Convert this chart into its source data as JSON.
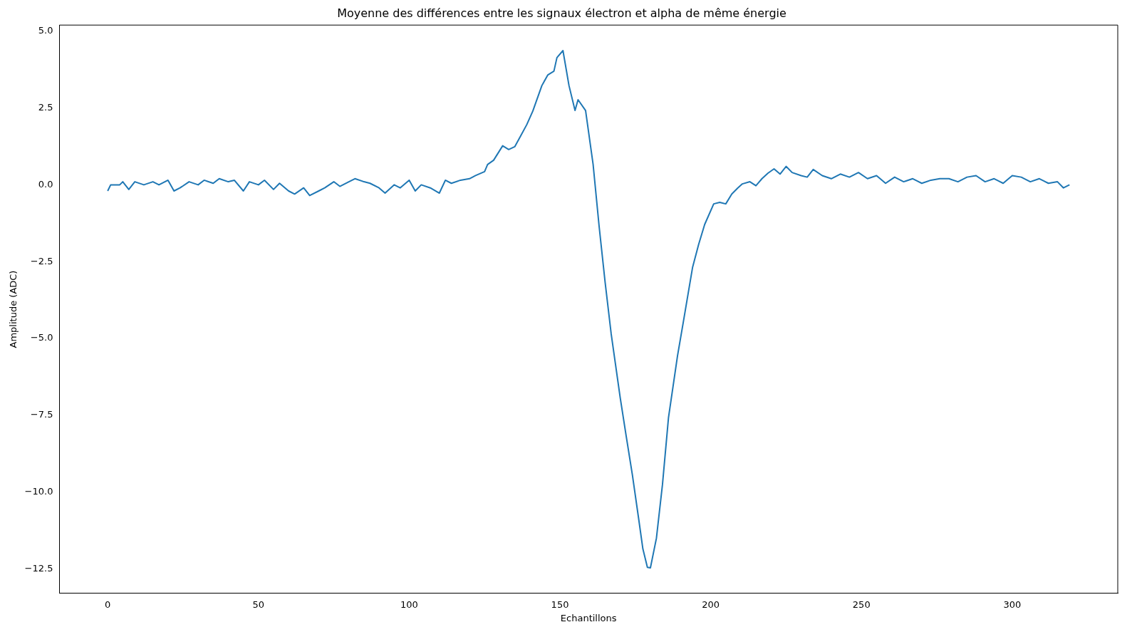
{
  "chart_data": {
    "type": "line",
    "title": "Moyenne des différences entre les signaux électron et alpha de même énergie",
    "xlabel": "Echantillons",
    "ylabel": "Amplitude (ADC)",
    "xlim": [
      -16,
      335
    ],
    "xticks": [
      0,
      50,
      100,
      150,
      200,
      250,
      300
    ],
    "ylim": [
      -13.3,
      5.2
    ],
    "yticks": [
      {
        "value": -12.5,
        "label": "−12.5"
      },
      {
        "value": -10,
        "label": "−10.0"
      },
      {
        "value": -7.5,
        "label": "−7.5"
      },
      {
        "value": -5,
        "label": "−5.0"
      },
      {
        "value": -2.5,
        "label": "−2.5"
      },
      {
        "value": 0,
        "label": "0.0"
      },
      {
        "value": 2.5,
        "label": "2.5"
      },
      {
        "value": 5,
        "label": "5.0"
      }
    ],
    "grid": false,
    "legend": false,
    "marker": "none",
    "line_style": "solid",
    "series": [
      {
        "color": "#1f77b4",
        "x": [
          0,
          1,
          4,
          5,
          7,
          9,
          12,
          15,
          17,
          20,
          22,
          24,
          27,
          30,
          32,
          35,
          37,
          40,
          42,
          45,
          47,
          50,
          52,
          55,
          57,
          60,
          62,
          65,
          67,
          70,
          72,
          75,
          77,
          80,
          82,
          85,
          87,
          90,
          92,
          95,
          97,
          100,
          102,
          104,
          107,
          110,
          112,
          114,
          117,
          120,
          122,
          125,
          126,
          128,
          131,
          133,
          135,
          137,
          139,
          141,
          144,
          146,
          148,
          149,
          151,
          153,
          155,
          156,
          158.5,
          161,
          163,
          165,
          167,
          170,
          172,
          174,
          176,
          177.5,
          179,
          180,
          182,
          184,
          186,
          189,
          191,
          194,
          196,
          198,
          201,
          203,
          205,
          207,
          209,
          210.5,
          213,
          215,
          217,
          219,
          221,
          223,
          225,
          227,
          230,
          232,
          234,
          237,
          240,
          243,
          246,
          249,
          252,
          255,
          258,
          261,
          264,
          267,
          270,
          273,
          276,
          279,
          282,
          285,
          288,
          291,
          294,
          297,
          300,
          303,
          306,
          309,
          312,
          315,
          317,
          319
        ],
        "values": [
          -0.2,
          0,
          0,
          0.1,
          -0.15,
          0.1,
          0,
          0.1,
          0,
          0.15,
          -0.2,
          -0.1,
          0.1,
          0,
          0.15,
          0.05,
          0.2,
          0.1,
          0.15,
          -0.2,
          0.1,
          0,
          0.15,
          -0.15,
          0.05,
          -0.2,
          -0.3,
          -0.1,
          -0.35,
          -0.2,
          -0.1,
          0.1,
          -0.05,
          0.1,
          0.2,
          0.1,
          0.05,
          -0.1,
          -0.27,
          0,
          -0.1,
          0.15,
          -0.2,
          0,
          -0.1,
          -0.27,
          0.15,
          0.05,
          0.15,
          0.2,
          0.3,
          0.43,
          0.66,
          0.8,
          1.27,
          1.15,
          1.24,
          1.6,
          1.96,
          2.4,
          3.23,
          3.58,
          3.7,
          4.14,
          4.37,
          3.23,
          2.42,
          2.77,
          2.42,
          0.66,
          -1.36,
          -3.19,
          -4.86,
          -6.94,
          -8.2,
          -9.43,
          -10.8,
          -11.85,
          -12.45,
          -12.47,
          -11.5,
          -9.76,
          -7.58,
          -5.56,
          -4.42,
          -2.68,
          -1.94,
          -1.29,
          -0.62,
          -0.57,
          -0.62,
          -0.3,
          -0.1,
          0.03,
          0.1,
          -0.03,
          0.2,
          0.38,
          0.52,
          0.35,
          0.6,
          0.4,
          0.3,
          0.25,
          0.5,
          0.3,
          0.2,
          0.35,
          0.25,
          0.4,
          0.2,
          0.3,
          0.05,
          0.25,
          0.1,
          0.2,
          0.05,
          0.15,
          0.2,
          0.2,
          0.1,
          0.25,
          0.3,
          0.1,
          0.2,
          0.05,
          0.3,
          0.25,
          0.1,
          0.2,
          0.05,
          0.1,
          -0.1,
          0
        ]
      }
    ]
  }
}
